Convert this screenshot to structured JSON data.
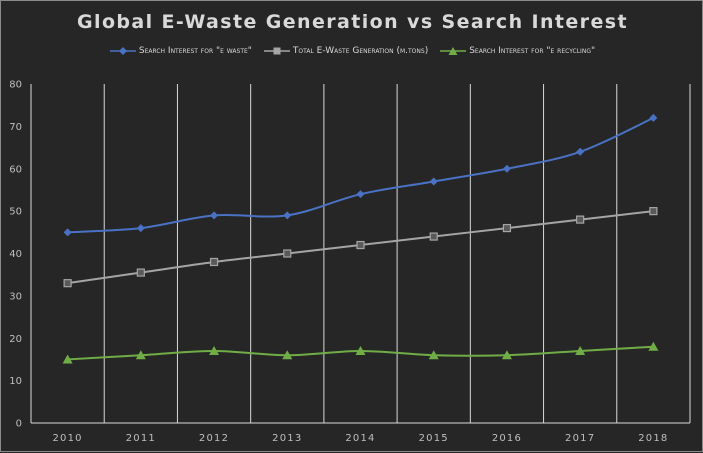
{
  "chart_data": {
    "type": "line",
    "title": "Global E-Waste Generation vs Search Interest",
    "categories": [
      "2010",
      "2011",
      "2012",
      "2013",
      "2014",
      "2015",
      "2016",
      "2017",
      "2018"
    ],
    "series": [
      {
        "name": "Search Interest for \"e waste\"",
        "color": "#4a72c4",
        "marker": "diamond",
        "values": [
          45,
          46,
          49,
          49,
          54,
          57,
          60,
          64,
          72
        ]
      },
      {
        "name": "Total E-Waste Generation (m.tons)",
        "color": "#a5a5a5",
        "marker": "square",
        "values": [
          33,
          35.5,
          38,
          40,
          42,
          44,
          46,
          48,
          50
        ]
      },
      {
        "name": "Search Interest for \"e recycling\"",
        "color": "#70ad47",
        "marker": "triangle",
        "values": [
          15,
          16,
          17,
          16,
          17,
          16,
          16,
          17,
          18
        ]
      }
    ],
    "ylim": [
      0,
      80
    ],
    "yticks": [
      0,
      10,
      20,
      30,
      40,
      50,
      60,
      70,
      80
    ],
    "grid": "vertical",
    "legend": "top"
  }
}
